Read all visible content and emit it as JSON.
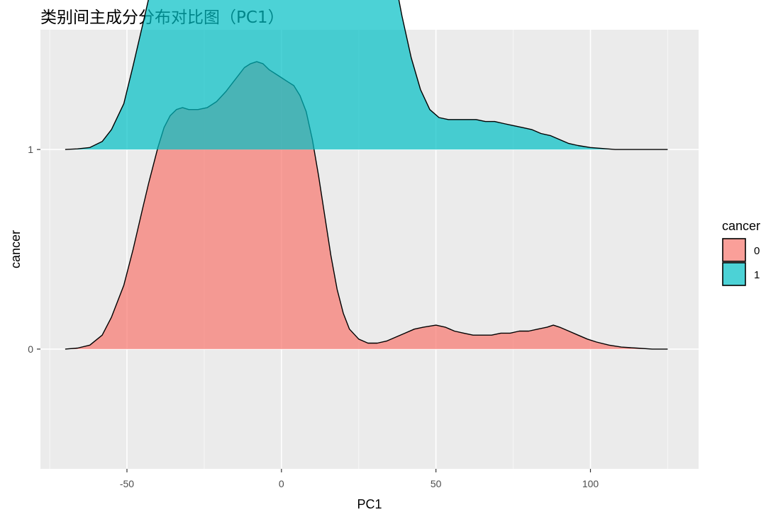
{
  "chart_data": {
    "type": "area",
    "subtype": "ridgeline-density",
    "title": "类别间主成分分布对比图（PC1）",
    "xlabel": "PC1",
    "ylabel": "cancer",
    "xlim": [
      -78,
      135
    ],
    "ylim": [
      -0.6,
      1.6
    ],
    "x_ticks": [
      -50,
      0,
      50,
      100
    ],
    "y_ticks": [
      0,
      1
    ],
    "y_tick_labels": [
      "0",
      "1"
    ],
    "grid": true,
    "legend": {
      "title": "cancer",
      "position": "right",
      "entries": [
        {
          "label": "0",
          "color": "#F8766D"
        },
        {
          "label": "1",
          "color": "#00BFC4"
        }
      ]
    },
    "series": [
      {
        "name": "0",
        "baseline": 0,
        "color": "#F8766D",
        "opacity": 0.7,
        "x": [
          -70,
          -66,
          -62,
          -58,
          -55,
          -51,
          -48,
          -45,
          -43,
          -40,
          -38,
          -36,
          -34,
          -32,
          -30,
          -27,
          -24,
          -21,
          -18,
          -16,
          -14,
          -12,
          -10,
          -8,
          -6,
          -4,
          -2,
          0,
          2,
          4,
          6,
          8,
          10,
          12,
          14,
          16,
          18,
          20,
          22,
          25,
          28,
          31,
          34,
          37,
          40,
          43,
          46,
          50,
          53,
          56,
          59,
          62,
          65,
          68,
          71,
          74,
          77,
          80,
          83,
          86,
          88,
          90,
          93,
          96,
          99,
          102,
          106,
          110,
          115,
          120,
          125
        ],
        "y": [
          0.0,
          0.005,
          0.02,
          0.07,
          0.16,
          0.32,
          0.5,
          0.7,
          0.83,
          1.01,
          1.11,
          1.17,
          1.2,
          1.21,
          1.2,
          1.2,
          1.21,
          1.24,
          1.29,
          1.33,
          1.37,
          1.41,
          1.43,
          1.44,
          1.43,
          1.4,
          1.38,
          1.36,
          1.34,
          1.32,
          1.27,
          1.19,
          1.05,
          0.87,
          0.67,
          0.47,
          0.3,
          0.18,
          0.1,
          0.05,
          0.03,
          0.03,
          0.04,
          0.06,
          0.08,
          0.1,
          0.11,
          0.12,
          0.11,
          0.09,
          0.08,
          0.07,
          0.07,
          0.07,
          0.08,
          0.08,
          0.09,
          0.09,
          0.1,
          0.11,
          0.12,
          0.11,
          0.09,
          0.07,
          0.05,
          0.035,
          0.02,
          0.01,
          0.005,
          0.0,
          0.0
        ]
      },
      {
        "name": "1",
        "baseline": 1,
        "color": "#00BFC4",
        "opacity": 0.7,
        "x": [
          -70,
          -66,
          -62,
          -58,
          -55,
          -51,
          -48,
          -45,
          -42,
          -39,
          -36,
          -34,
          -32,
          -30,
          -28,
          -26,
          -23,
          -20,
          -17,
          -14,
          -11,
          -8,
          -5,
          -2,
          0,
          2,
          5,
          8,
          11,
          14,
          17,
          20,
          23,
          25,
          27,
          30,
          33,
          36,
          39,
          42,
          45,
          48,
          51,
          54,
          57,
          60,
          63,
          66,
          69,
          72,
          75,
          78,
          81,
          84,
          87,
          90,
          93,
          96,
          100,
          104,
          108,
          112,
          118,
          125
        ],
        "y": [
          0.0,
          0.003,
          0.01,
          0.04,
          0.1,
          0.23,
          0.42,
          0.62,
          0.82,
          1.0,
          1.17,
          1.26,
          1.3,
          1.3,
          1.28,
          1.24,
          1.17,
          1.06,
          1.05,
          1.1,
          1.16,
          1.2,
          1.22,
          1.22,
          1.22,
          1.21,
          1.19,
          1.18,
          1.19,
          1.22,
          1.26,
          1.29,
          1.3,
          1.3,
          1.28,
          1.22,
          1.1,
          0.91,
          0.67,
          0.46,
          0.3,
          0.2,
          0.16,
          0.15,
          0.15,
          0.15,
          0.15,
          0.14,
          0.14,
          0.13,
          0.12,
          0.11,
          0.1,
          0.08,
          0.07,
          0.05,
          0.03,
          0.02,
          0.01,
          0.005,
          0.0,
          0.0,
          0.0,
          0.0
        ]
      }
    ]
  }
}
